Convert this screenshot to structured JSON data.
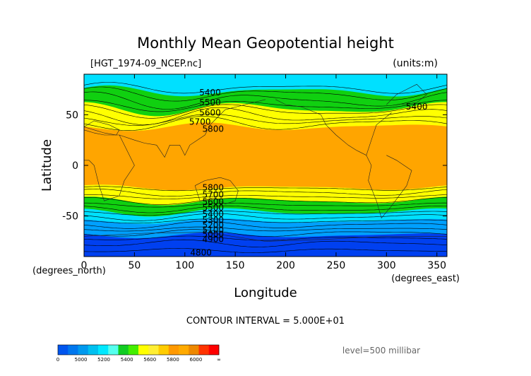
{
  "header": {
    "title": "Monthly Mean Geopotential height",
    "filename": "[HGT_1974-09_NCEP.nc]",
    "units": "(units:m)"
  },
  "footer": {
    "contour_interval": "CONTOUR INTERVAL = 5.000E+01",
    "level": "level=500 millibar"
  },
  "chart_data": {
    "type": "heatmap",
    "title": "Monthly Mean Geopotential height",
    "xlabel": "Longitude",
    "ylabel": "Latitude",
    "x_unit": "(degrees_east)",
    "y_unit": "(degrees_north)",
    "xlim": [
      0,
      360
    ],
    "ylim": [
      -90,
      90
    ],
    "x_ticks": [
      0,
      50,
      100,
      150,
      200,
      250,
      300,
      350
    ],
    "y_ticks": [
      -50,
      0,
      50
    ],
    "contour_labels": [
      {
        "text": "5400",
        "lon": 125,
        "lat": 72
      },
      {
        "text": "5500",
        "lon": 125,
        "lat": 62
      },
      {
        "text": "5600",
        "lon": 125,
        "lat": 52
      },
      {
        "text": "5700",
        "lon": 115,
        "lat": 43
      },
      {
        "text": "5800",
        "lon": 128,
        "lat": 36
      },
      {
        "text": "5400",
        "lon": 330,
        "lat": 58
      },
      {
        "text": "5800",
        "lon": 128,
        "lat": -22
      },
      {
        "text": "5700",
        "lon": 128,
        "lat": -29
      },
      {
        "text": "5600",
        "lon": 128,
        "lat": -36
      },
      {
        "text": "5500",
        "lon": 128,
        "lat": -42
      },
      {
        "text": "5400",
        "lon": 128,
        "lat": -48
      },
      {
        "text": "5300",
        "lon": 128,
        "lat": -54
      },
      {
        "text": "5200",
        "lon": 128,
        "lat": -59
      },
      {
        "text": "5100",
        "lon": 128,
        "lat": -64
      },
      {
        "text": "5000",
        "lon": 128,
        "lat": -68
      },
      {
        "text": "4900",
        "lon": 128,
        "lat": -73
      },
      {
        "text": "4800",
        "lon": 116,
        "lat": -86
      }
    ],
    "colorbar": {
      "ticks": [
        "0",
        "5000",
        "5200",
        "5400",
        "5600",
        "5800",
        "6000",
        "∞"
      ],
      "colors": [
        "#0055ee",
        "#0077ee",
        "#0099ee",
        "#00c0f0",
        "#00e8ff",
        "#55ffee",
        "#11cc22",
        "#44ee00",
        "#ffff00",
        "#ffee33",
        "#ffcc00",
        "#ff9900",
        "#ffaa00",
        "#ee8800",
        "#ff3300",
        "#ff0000"
      ]
    },
    "zone_colors": {
      "deep_low": "#0040f0",
      "low": "#00a0ff",
      "cyan": "#00e0ff",
      "green": "#10d010",
      "yellow": "#ffff00",
      "orange": "#ffa500"
    }
  }
}
